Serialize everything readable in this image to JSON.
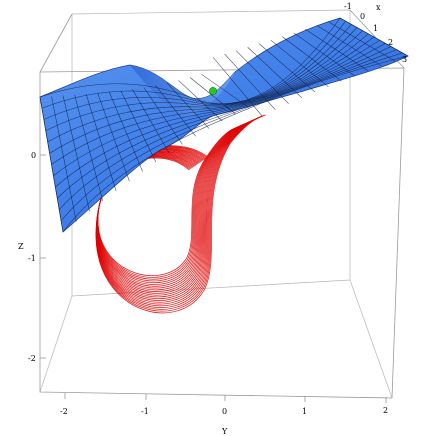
{
  "plot": {
    "axes": {
      "x": {
        "label": "x",
        "ticks": [
          "-1",
          "0",
          "1",
          "2",
          "3"
        ]
      },
      "y": {
        "label": "Y",
        "ticks": [
          "-2",
          "-1",
          "0",
          "1",
          "2"
        ]
      },
      "z": {
        "label": "Z",
        "ticks": [
          "0",
          "-1",
          "-2"
        ]
      }
    },
    "colors": {
      "surface": "#3f7ee8",
      "surface_dark": "#2a5bc4",
      "orbit": "#e00000",
      "equilibrium_point": "#22cc22",
      "box": "#9a9a9a"
    },
    "elements": [
      "bounding-box",
      "manifold-surface",
      "orbit-trajectory",
      "equilibrium-point"
    ]
  }
}
